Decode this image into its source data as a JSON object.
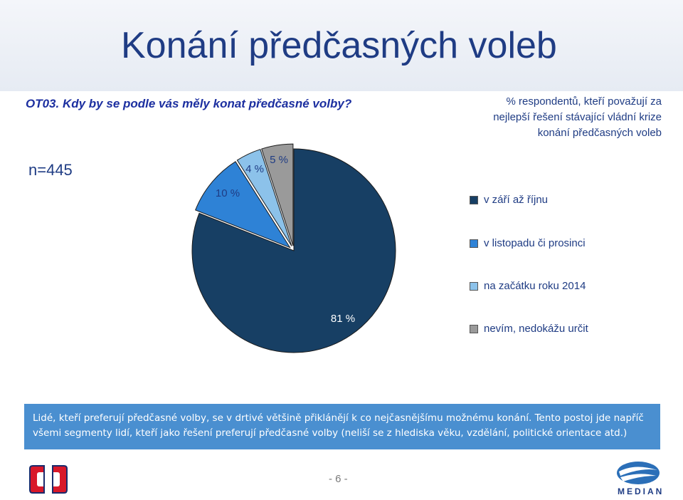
{
  "header": {
    "title": "Konání předčasných voleb"
  },
  "question": "OT03. Kdy by se podle vás měly konat předčasné volby?",
  "sample": "n=445",
  "note": "% respondentů, kteří považují za nejlepší řešení stávající vládní krize konání předčasných voleb",
  "chart_data": {
    "type": "pie",
    "categories": [
      "v září až říjnu",
      "v listopadu či prosinci",
      "na začátku roku 2014",
      "nevím, nedokážu určit"
    ],
    "values": [
      81,
      10,
      4,
      5
    ],
    "labels": [
      "81 %",
      "10 %",
      "4 %",
      "5 %"
    ],
    "colors": [
      "#173f64",
      "#2e82d6",
      "#8cc2ea",
      "#9a9a9a"
    ],
    "legend_position": "right"
  },
  "conclusion": "Lidé, kteří preferují předčasné volby, se v drtivé většině přiklánějí k co nejčasnějšímu možnému konání. Tento postoj jde napříč všemi segmenty lidí, kteří jako řešení preferují předčasné volby (neliší se z hlediska věku, vzdělání, politické orientace atd.)",
  "footer": {
    "page_number": "- 6 -",
    "median_logo_text": "MEDIAN"
  }
}
